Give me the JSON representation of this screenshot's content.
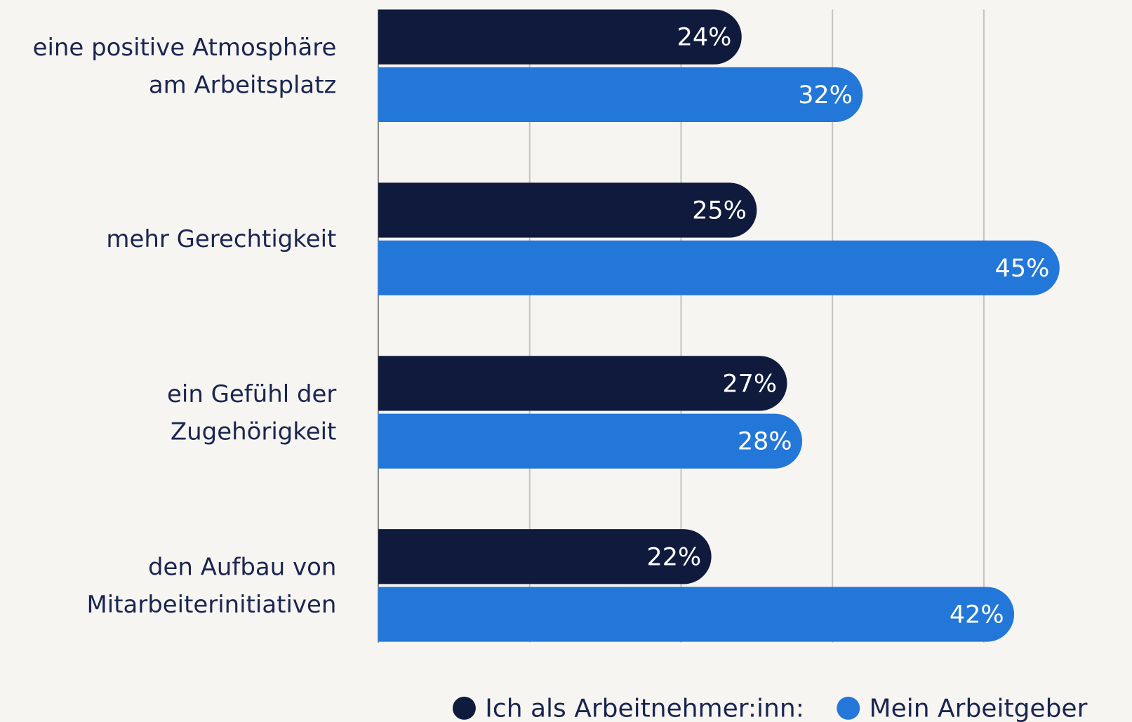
{
  "chart_data": {
    "type": "hbar",
    "categories": [
      "eine positive Atmosphäre\nam Arbeitsplatz",
      "mehr Gerechtigkeit",
      "ein Gefühl der\nZugehörigkeit",
      "den Aufbau von\nMitarbeiterinitiativen"
    ],
    "series": [
      {
        "name": "Ich als Arbeitnehmer:inn:",
        "color": "#0f1a3d",
        "values": [
          24,
          25,
          27,
          22
        ],
        "value_labels": [
          "24%",
          "25%",
          "27%",
          "22%"
        ]
      },
      {
        "name": "Mein Arbeitgeber",
        "color": "#2277d9",
        "values": [
          32,
          45,
          28,
          42
        ],
        "value_labels": [
          "32%",
          "45%",
          "28%",
          "42%"
        ]
      }
    ],
    "xlim": [
      0,
      50
    ],
    "xticks": [
      0,
      10,
      20,
      30,
      40
    ],
    "grid": true,
    "legend": "bottom"
  }
}
